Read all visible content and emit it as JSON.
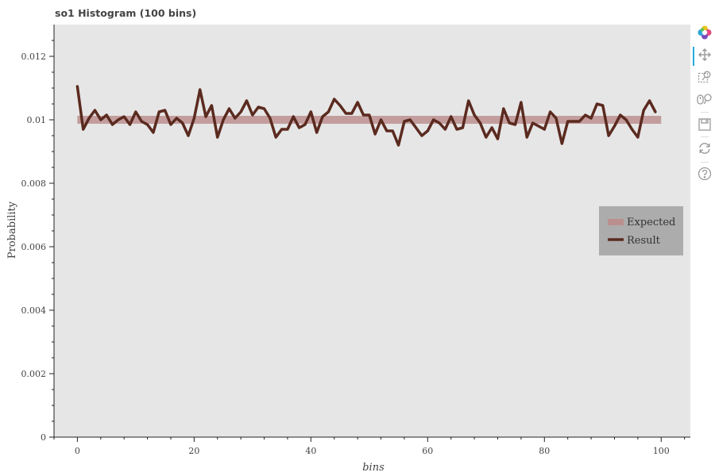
{
  "chart_data": {
    "type": "line",
    "title": "so1 Histogram (100 bins)",
    "xlabel": "bins",
    "ylabel": "Probability",
    "xlim": [
      -4,
      105
    ],
    "ylim": [
      0,
      0.013
    ],
    "x_ticks": [
      0,
      20,
      40,
      60,
      80,
      100
    ],
    "x_tick_labels": [
      "0",
      "20",
      "40",
      "60",
      "80",
      "100"
    ],
    "y_ticks": [
      0,
      0.002,
      0.004,
      0.006,
      0.008,
      0.01,
      0.012
    ],
    "y_tick_labels": [
      "0",
      "0.002",
      "0.004",
      "0.006",
      "0.008",
      "0.01",
      "0.012"
    ],
    "grid": false,
    "background": "#e6e6e6",
    "legend_position": "right-center",
    "series": [
      {
        "name": "Expected",
        "color": "#bc8f8f",
        "x": [
          0,
          100
        ],
        "values": [
          0.01,
          0.01
        ]
      },
      {
        "name": "Result",
        "color": "#5b2a1f",
        "x": [
          0,
          1,
          2,
          3,
          4,
          5,
          6,
          7,
          8,
          9,
          10,
          11,
          12,
          13,
          14,
          15,
          16,
          17,
          18,
          19,
          20,
          21,
          22,
          23,
          24,
          25,
          26,
          27,
          28,
          29,
          30,
          31,
          32,
          33,
          34,
          35,
          36,
          37,
          38,
          39,
          40,
          41,
          42,
          43,
          44,
          45,
          46,
          47,
          48,
          49,
          50,
          51,
          52,
          53,
          54,
          55,
          56,
          57,
          58,
          59,
          60,
          61,
          62,
          63,
          64,
          65,
          66,
          67,
          68,
          69,
          70,
          71,
          72,
          73,
          74,
          75,
          76,
          77,
          78,
          79,
          80,
          81,
          82,
          83,
          84,
          85,
          86,
          87,
          88,
          89,
          90,
          91,
          92,
          93,
          94,
          95,
          96,
          97,
          98,
          99
        ],
        "values": [
          0.01105,
          0.0097,
          0.01005,
          0.0103,
          0.01,
          0.01015,
          0.00985,
          0.01,
          0.0101,
          0.00985,
          0.01025,
          0.00995,
          0.00985,
          0.0096,
          0.01025,
          0.0103,
          0.00985,
          0.01005,
          0.0099,
          0.0095,
          0.01005,
          0.01095,
          0.0101,
          0.01045,
          0.00945,
          0.01,
          0.01035,
          0.01005,
          0.01025,
          0.0106,
          0.01015,
          0.0104,
          0.01035,
          0.01005,
          0.00945,
          0.0097,
          0.0097,
          0.0101,
          0.00975,
          0.00985,
          0.01025,
          0.0096,
          0.0101,
          0.01025,
          0.01065,
          0.01045,
          0.0102,
          0.0102,
          0.01055,
          0.01015,
          0.01015,
          0.00955,
          0.01,
          0.00965,
          0.00965,
          0.0092,
          0.00995,
          0.01,
          0.00975,
          0.0095,
          0.00965,
          0.01,
          0.0099,
          0.0097,
          0.0101,
          0.0097,
          0.00975,
          0.0106,
          0.01015,
          0.0099,
          0.00945,
          0.00975,
          0.0094,
          0.01035,
          0.0099,
          0.00985,
          0.01055,
          0.00945,
          0.0099,
          0.0098,
          0.0097,
          0.01025,
          0.01005,
          0.00925,
          0.00995,
          0.00995,
          0.00995,
          0.01015,
          0.01005,
          0.0105,
          0.01045,
          0.0095,
          0.0098,
          0.01015,
          0.01,
          0.0097,
          0.00945,
          0.0103,
          0.0106,
          0.01025
        ]
      }
    ]
  },
  "toolbar": {
    "tools": [
      {
        "icon": "bokeh-logo-icon"
      },
      {
        "icon": "pan-icon"
      },
      {
        "icon": "box-zoom-icon"
      },
      {
        "icon": "wheel-zoom-icon"
      },
      {
        "icon": "save-icon"
      },
      {
        "icon": "reset-icon"
      },
      {
        "icon": "help-icon"
      }
    ]
  }
}
